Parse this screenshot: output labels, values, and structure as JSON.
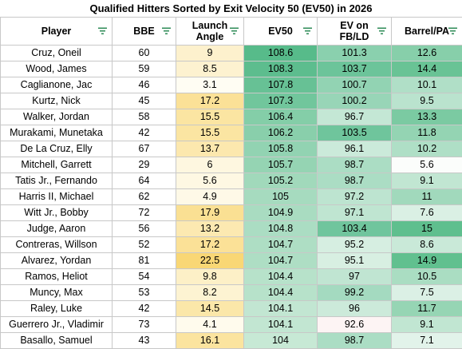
{
  "title": "Qualified Hitters Sorted by Exit Velocity 50 (EV50) in 2026",
  "filter_icon": "filter-icon",
  "columns": [
    {
      "key": "player",
      "label": "Player"
    },
    {
      "key": "bbe",
      "label": "BBE"
    },
    {
      "key": "la",
      "label": "Launch\nAngle"
    },
    {
      "key": "ev50",
      "label": "EV50"
    },
    {
      "key": "evfb",
      "label": "EV on\nFB/LD"
    },
    {
      "key": "barrel",
      "label": "Barrel/PA"
    }
  ],
  "rows": [
    {
      "player": "Cruz, Oneil",
      "bbe": "60",
      "la": "9",
      "ev50": "108.6",
      "evfb": "101.3",
      "barrel": "12.6"
    },
    {
      "player": "Wood, James",
      "bbe": "59",
      "la": "8.5",
      "ev50": "108.3",
      "evfb": "103.7",
      "barrel": "14.4"
    },
    {
      "player": "Caglianone, Jac",
      "bbe": "46",
      "la": "3.1",
      "ev50": "107.8",
      "evfb": "100.7",
      "barrel": "10.1"
    },
    {
      "player": "Kurtz, Nick",
      "bbe": "45",
      "la": "17.2",
      "ev50": "107.3",
      "evfb": "100.2",
      "barrel": "9.5"
    },
    {
      "player": "Walker, Jordan",
      "bbe": "58",
      "la": "15.5",
      "ev50": "106.4",
      "evfb": "96.7",
      "barrel": "13.3"
    },
    {
      "player": "Murakami, Munetaka",
      "bbe": "42",
      "la": "15.5",
      "ev50": "106.2",
      "evfb": "103.5",
      "barrel": "11.8"
    },
    {
      "player": "De La Cruz, Elly",
      "bbe": "67",
      "la": "13.7",
      "ev50": "105.8",
      "evfb": "96.1",
      "barrel": "10.2"
    },
    {
      "player": "Mitchell, Garrett",
      "bbe": "29",
      "la": "6",
      "ev50": "105.7",
      "evfb": "98.7",
      "barrel": "5.6"
    },
    {
      "player": "Tatis Jr., Fernando",
      "bbe": "64",
      "la": "5.6",
      "ev50": "105.2",
      "evfb": "98.7",
      "barrel": "9.1"
    },
    {
      "player": "Harris II, Michael",
      "bbe": "62",
      "la": "4.9",
      "ev50": "105",
      "evfb": "97.2",
      "barrel": "11"
    },
    {
      "player": "Witt Jr., Bobby",
      "bbe": "72",
      "la": "17.9",
      "ev50": "104.9",
      "evfb": "97.1",
      "barrel": "7.6"
    },
    {
      "player": "Judge, Aaron",
      "bbe": "56",
      "la": "13.2",
      "ev50": "104.8",
      "evfb": "103.4",
      "barrel": "15"
    },
    {
      "player": "Contreras, Willson",
      "bbe": "52",
      "la": "17.2",
      "ev50": "104.7",
      "evfb": "95.2",
      "barrel": "8.6"
    },
    {
      "player": "Alvarez, Yordan",
      "bbe": "81",
      "la": "22.5",
      "ev50": "104.7",
      "evfb": "95.1",
      "barrel": "14.9"
    },
    {
      "player": "Ramos, Heliot",
      "bbe": "54",
      "la": "9.8",
      "ev50": "104.4",
      "evfb": "97",
      "barrel": "10.5"
    },
    {
      "player": "Muncy, Max",
      "bbe": "53",
      "la": "8.2",
      "ev50": "104.4",
      "evfb": "99.2",
      "barrel": "7.5"
    },
    {
      "player": "Raley, Luke",
      "bbe": "42",
      "la": "14.5",
      "ev50": "104.1",
      "evfb": "96",
      "barrel": "11.7"
    },
    {
      "player": "Guerrero Jr., Vladimir",
      "bbe": "73",
      "la": "4.1",
      "ev50": "104.1",
      "evfb": "92.6",
      "barrel": "9.1"
    },
    {
      "player": "Basallo, Samuel",
      "bbe": "43",
      "la": "16.1",
      "ev50": "104",
      "evfb": "98.7",
      "barrel": "7.1"
    }
  ],
  "colors": {
    "la_low": "#fffdf3",
    "la_high": "#f9d775",
    "green_low": "#ffffff",
    "green_high": "#57bb8a",
    "evfb_low": "#fdf4f4"
  }
}
